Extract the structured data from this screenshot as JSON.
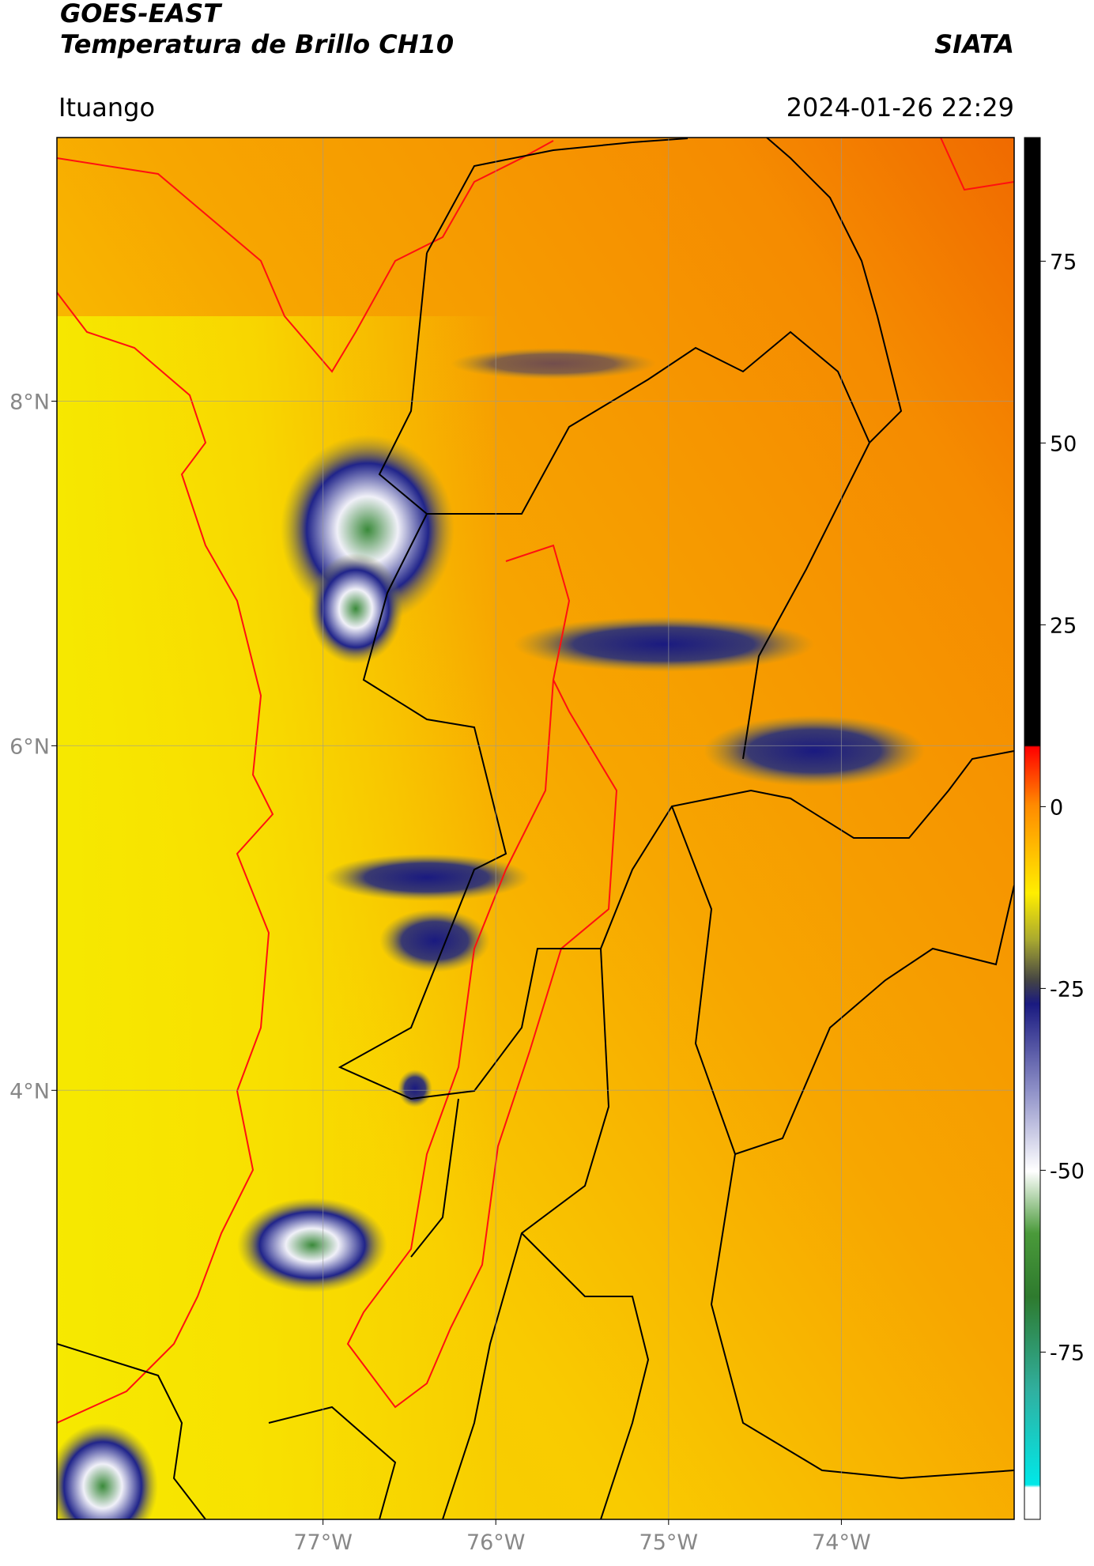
{
  "header": {
    "title": "GOES-EAST",
    "subtitle": "Temperatura de Brillo CH10",
    "source": "SIATA",
    "location": "Ituango",
    "datetime": "2024-01-26 22:29"
  },
  "map": {
    "lon_lim": [
      -78.54,
      -73.0
    ],
    "lat_lim": [
      1.51,
      9.53
    ],
    "lat_ticks": [
      {
        "value": 8,
        "label": "8°N"
      },
      {
        "value": 6,
        "label": "6°N"
      },
      {
        "value": 4,
        "label": "4°N"
      }
    ],
    "lon_ticks": [
      {
        "value": -77,
        "label": "77°W"
      },
      {
        "value": -76,
        "label": "76°W"
      },
      {
        "value": -75,
        "label": "75°W"
      },
      {
        "value": -74,
        "label": "74°W"
      }
    ],
    "grid": true,
    "colorbar": {
      "lim": [
        -98,
        92
      ],
      "ticks": [
        75,
        50,
        25,
        0,
        -25,
        -50,
        -75
      ]
    }
  }
}
